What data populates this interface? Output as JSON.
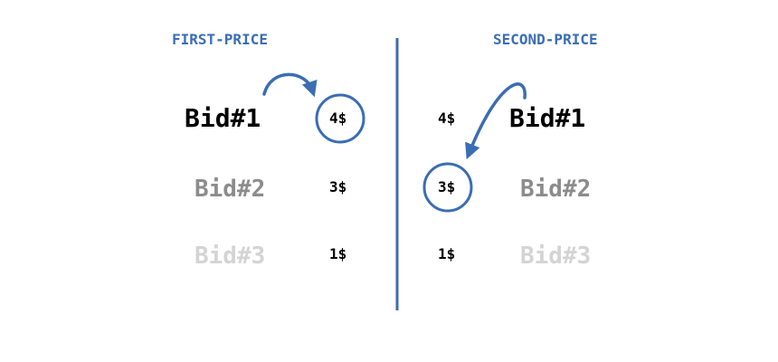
{
  "colors": {
    "accent": "#3b6db3",
    "bid_1": "#000000",
    "bid_2": "#8c8c8c",
    "bid_3": "#d4d4d4",
    "price": "#000000"
  },
  "first_price": {
    "heading": "FIRST-PRICE",
    "bids": [
      "Bid#1",
      "Bid#2",
      "Bid#3"
    ],
    "prices": [
      "4$",
      "3$",
      "1$"
    ],
    "charged_index": 0
  },
  "second_price": {
    "heading": "SECOND-PRICE",
    "bids": [
      "Bid#1",
      "Bid#2",
      "Bid#3"
    ],
    "prices": [
      "4$",
      "3$",
      "1$"
    ],
    "charged_index": 1
  }
}
